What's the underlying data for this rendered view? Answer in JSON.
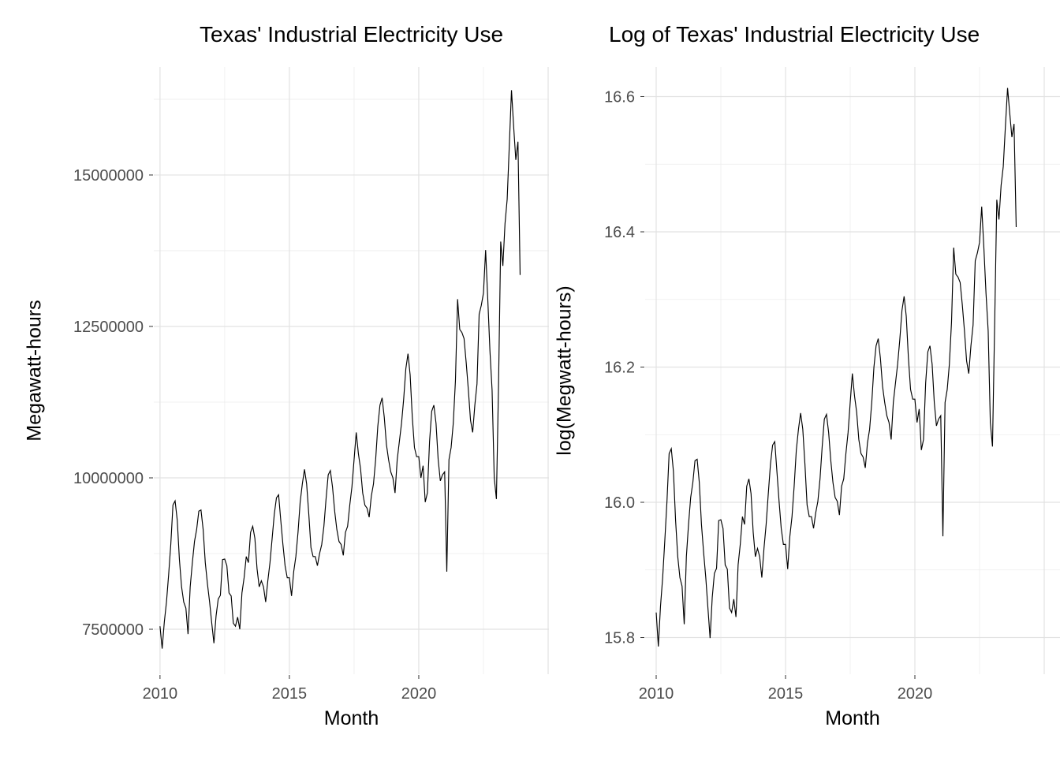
{
  "figure": {
    "description": "Two side-by-side line charts of monthly Texas industrial electricity use, 2010 through 2023",
    "background": "#ffffff",
    "text_color": "#000000",
    "tick_label_color": "#4d4d4d",
    "gridline_color": "#e2e2e2"
  },
  "chart_data": [
    {
      "type": "line",
      "title": "Texas' Industrial Electricity Use",
      "xlabel": "Month",
      "ylabel": "Megawatt-hours",
      "series_color": "#000000",
      "legend": "none",
      "grid": "major and minor, light gray, no panel border",
      "x_ticks": [
        2010,
        2015,
        2020
      ],
      "x_grid_major": [
        2010,
        2015,
        2020,
        2025
      ],
      "x_grid_minor": [
        2012.5,
        2017.5,
        2022.5
      ],
      "y_ticks": [
        7500000,
        10000000,
        12500000,
        15000000
      ],
      "y_tick_labels": [
        "7500000",
        "10000000",
        "12500000",
        "15000000"
      ],
      "y_grid_minor": [
        8750000,
        11250000,
        13750000,
        16250000
      ],
      "x_range": [
        2009.76,
        2025.03
      ],
      "y_range": [
        6758000,
        16783000
      ],
      "time_start": "2010-01",
      "time_end": "2023-12",
      "frequency": "monthly",
      "x_start": 2010.0,
      "x_interval_years": 0.0833333,
      "values": [
        7550000,
        7180000,
        7620000,
        7950000,
        8400000,
        8900000,
        9550000,
        9620000,
        9300000,
        8650000,
        8200000,
        7950000,
        7850000,
        7420000,
        8200000,
        8600000,
        8950000,
        9150000,
        9450000,
        9470000,
        9150000,
        8600000,
        8250000,
        7950000,
        7600000,
        7270000,
        7720000,
        8000000,
        8060000,
        8650000,
        8660000,
        8550000,
        8100000,
        8050000,
        7600000,
        7550000,
        7700000,
        7500000,
        8100000,
        8350000,
        8700000,
        8600000,
        9100000,
        9200000,
        9000000,
        8500000,
        8200000,
        8300000,
        8200000,
        7950000,
        8300000,
        8600000,
        9000000,
        9400000,
        9670000,
        9720000,
        9300000,
        8900000,
        8550000,
        8350000,
        8350000,
        8050000,
        8450000,
        8700000,
        9100000,
        9600000,
        9900000,
        10140000,
        9900000,
        9400000,
        8850000,
        8700000,
        8700000,
        8550000,
        8750000,
        8900000,
        9200000,
        9650000,
        10050000,
        10120000,
        9850000,
        9450000,
        9150000,
        8950000,
        8900000,
        8720000,
        9100000,
        9200000,
        9550000,
        9850000,
        10300000,
        10750000,
        10400000,
        10150000,
        9750000,
        9550000,
        9500000,
        9350000,
        9700000,
        9900000,
        10300000,
        10850000,
        11200000,
        11320000,
        11000000,
        10550000,
        10300000,
        10100000,
        10000000,
        9750000,
        10300000,
        10600000,
        10900000,
        11300000,
        11800000,
        12050000,
        11700000,
        11000000,
        10500000,
        10350000,
        10350000,
        10000000,
        10200000,
        9600000,
        9750000,
        10600000,
        11100000,
        11200000,
        10900000,
        10300000,
        9950000,
        10050000,
        10100000,
        8450000,
        10300000,
        10500000,
        10900000,
        11600000,
        12950000,
        12450000,
        12400000,
        12300000,
        11900000,
        11450000,
        10950000,
        10750000,
        11200000,
        11550000,
        12700000,
        12850000,
        13050000,
        13760000,
        12950000,
        12100000,
        11450000,
        10000000,
        9650000,
        11550000,
        13900000,
        13500000,
        14200000,
        14600000,
        15500000,
        16400000,
        15800000,
        15250000,
        15550000,
        13350000
      ]
    },
    {
      "type": "line",
      "title": "Log of Texas' Industrial Electricity Use",
      "xlabel": "Month",
      "ylabel": "log(Megwatt-hours)",
      "series_color": "#000000",
      "legend": "none",
      "grid": "major and minor, light gray, no panel border",
      "transform": "ln",
      "values_source": "natural log of chart_data[0].values",
      "x_ticks": [
        2010,
        2015,
        2020
      ],
      "x_grid_major": [
        2010,
        2015,
        2020,
        2025
      ],
      "x_grid_minor": [
        2012.5,
        2017.5,
        2022.5
      ],
      "y_ticks": [
        15.8,
        16.0,
        16.2,
        16.4,
        16.6
      ],
      "y_tick_labels": [
        "15.8",
        "16.0",
        "16.2",
        "16.4",
        "16.6"
      ],
      "y_grid_minor": [
        15.9,
        16.1,
        16.3,
        16.5
      ],
      "x_range": [
        2009.573,
        2025.61
      ],
      "y_range": [
        15.7458,
        16.6437
      ],
      "time_start": "2010-01",
      "time_end": "2023-12",
      "frequency": "monthly",
      "x_start": 2010.0,
      "x_interval_years": 0.0833333
    }
  ]
}
